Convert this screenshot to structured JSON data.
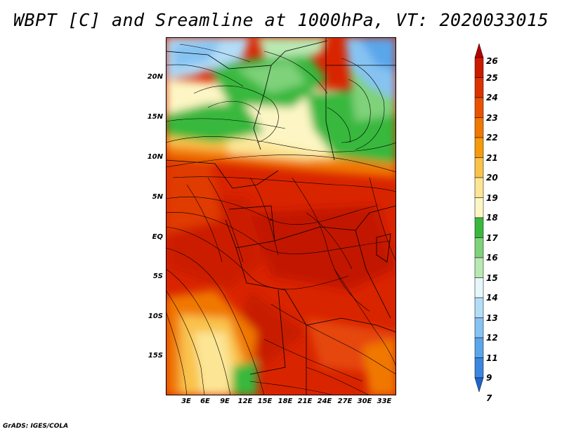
{
  "title": "WBPT [C] and Sreamline at 1000hPa, VT: 2020033015",
  "map": {
    "latitude_labels": [
      "20N",
      "15N",
      "10N",
      "5N",
      "EQ",
      "5S",
      "10S",
      "15S"
    ],
    "longitude_labels": [
      "3E",
      "6E",
      "9E",
      "12E",
      "15E",
      "18E",
      "21E",
      "24E",
      "27E",
      "30E",
      "33E"
    ]
  },
  "colorbar": {
    "levels": [
      "26",
      "25",
      "24",
      "23",
      "22",
      "21",
      "20",
      "19",
      "18",
      "17",
      "16",
      "15",
      "14",
      "13",
      "12",
      "11",
      "9",
      "7"
    ],
    "colors": [
      "#b40000",
      "#cc1a00",
      "#dd3300",
      "#ea5200",
      "#f07800",
      "#f59a0a",
      "#f9c24b",
      "#fce594",
      "#fdf6c4",
      "#39b83e",
      "#7fd27a",
      "#b9e8b2",
      "#e6f7fb",
      "#b3dcf7",
      "#86c3f2",
      "#5aa6ea",
      "#3b86e0",
      "#1e64d0"
    ]
  },
  "footer": "GrADS: IGES/COLA"
}
